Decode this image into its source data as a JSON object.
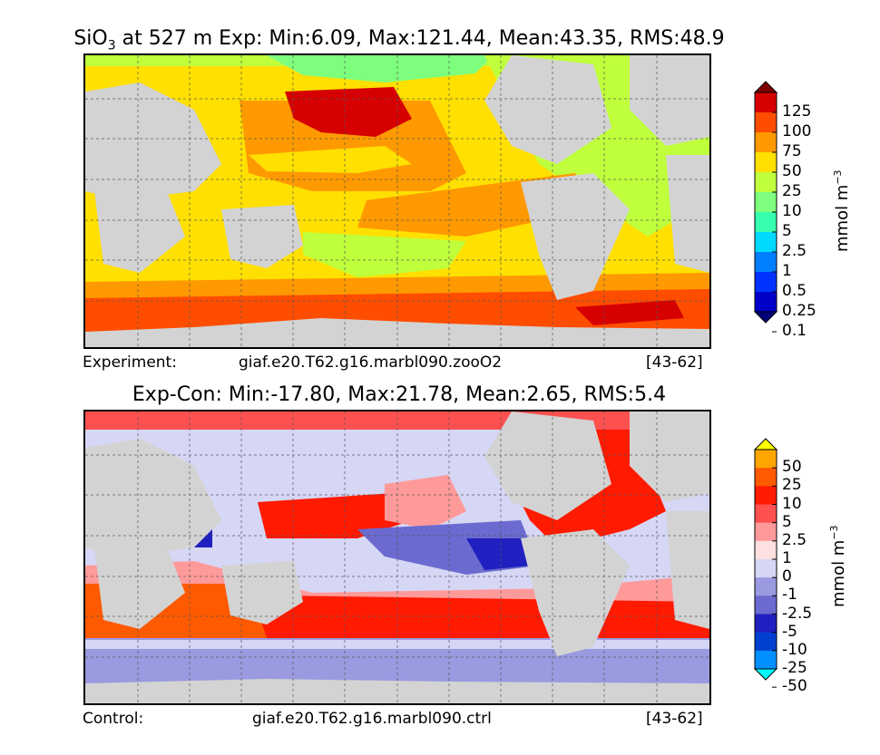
{
  "top": {
    "title_prefix": "SiO",
    "title_sub": "3",
    "title_rest": " at 527 m Exp: Min:6.09, Max:121.44, Mean:43.35, RMS:48.9",
    "footer_left": "Experiment:",
    "footer_center": "giaf.e20.T62.g16.marbl090.zooO2",
    "footer_right": "[43-62]",
    "colorbar": {
      "ticks": [
        "125",
        "100",
        "75",
        "50",
        "25",
        "10",
        "5",
        "2.5",
        "1",
        "0.5",
        "0.25",
        "0.1"
      ],
      "colors": [
        "#7f0000",
        "#d60000",
        "#ff4d00",
        "#ff9900",
        "#ffe000",
        "#bfff3c",
        "#7dff7d",
        "#36ffb0",
        "#00d9ff",
        "#0080ff",
        "#0033ff",
        "#0000c8",
        "#00007a"
      ],
      "unit": "mmol m",
      "unit_sup": "−3"
    }
  },
  "bottom": {
    "title": "Exp-Con: Min:-17.80, Max:21.78, Mean:2.65, RMS:5.4",
    "footer_left": "Control:",
    "footer_center": "giaf.e20.T62.g16.marbl090.ctrl",
    "footer_right": "[43-62]",
    "colorbar": {
      "ticks": [
        "50",
        "25",
        "10",
        "5",
        "2.5",
        "1",
        "0",
        "-1",
        "-2.5",
        "-5",
        "-10",
        "-25",
        "-50"
      ],
      "colors": [
        "#ffff00",
        "#ffa500",
        "#ff5a00",
        "#ff1a00",
        "#ff5050",
        "#ff9a9a",
        "#ffe0e0",
        "#d6d6f5",
        "#9a9ae0",
        "#6a6ad0",
        "#2020c0",
        "#0040d0",
        "#0090ff",
        "#00ffff"
      ],
      "unit": "mmol m",
      "unit_sup": "−3"
    }
  }
}
